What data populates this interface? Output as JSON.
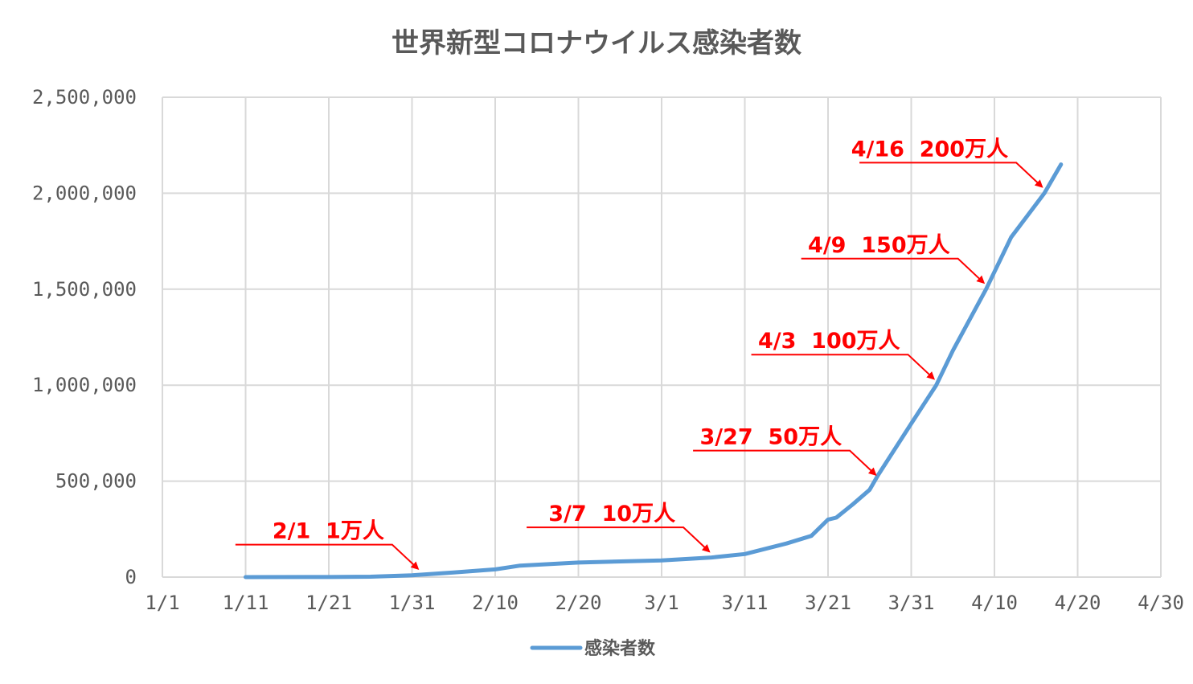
{
  "chart_data": {
    "type": "line",
    "title": "世界新型コロナウイルス感染者数",
    "xlabel": "",
    "ylabel": "",
    "x_ticks": [
      "1/1",
      "1/11",
      "1/21",
      "1/31",
      "2/10",
      "2/20",
      "3/1",
      "3/11",
      "3/21",
      "3/31",
      "4/10",
      "4/20",
      "4/30"
    ],
    "y_ticks": [
      "0",
      "500,000",
      "1,000,000",
      "1,500,000",
      "2,000,000",
      "2,500,000"
    ],
    "ylim": [
      0,
      2500000
    ],
    "xlim": [
      "1/1",
      "4/30"
    ],
    "grid": true,
    "legend_position": "bottom",
    "series": [
      {
        "name": "感染者数",
        "color": "#5b9bd5",
        "points": [
          [
            "1/11",
            0
          ],
          [
            "1/21",
            300
          ],
          [
            "1/26",
            2000
          ],
          [
            "1/31",
            9800
          ],
          [
            "2/5",
            24000
          ],
          [
            "2/10",
            40000
          ],
          [
            "2/13",
            60000
          ],
          [
            "2/20",
            76000
          ],
          [
            "3/1",
            87000
          ],
          [
            "3/7",
            102000
          ],
          [
            "3/11",
            120000
          ],
          [
            "3/16",
            175000
          ],
          [
            "3/19",
            215000
          ],
          [
            "3/21",
            300000
          ],
          [
            "3/22",
            310000
          ],
          [
            "3/24",
            380000
          ],
          [
            "3/26",
            455000
          ],
          [
            "3/27",
            530000
          ],
          [
            "3/31",
            800000
          ],
          [
            "4/3",
            1000000
          ],
          [
            "4/5",
            1180000
          ],
          [
            "4/9",
            1500000
          ],
          [
            "4/12",
            1770000
          ],
          [
            "4/16",
            2000000
          ],
          [
            "4/18",
            2150000
          ]
        ]
      }
    ],
    "annotations": [
      {
        "label": "2/1  1万人",
        "x": "2/1",
        "y": 10000
      },
      {
        "label": "3/7  10万人",
        "x": "3/7",
        "y": 100000
      },
      {
        "label": "3/27  50万人",
        "x": "3/27",
        "y": 500000
      },
      {
        "label": "4/3  100万人",
        "x": "4/3",
        "y": 1000000
      },
      {
        "label": "4/9  150万人",
        "x": "4/9",
        "y": 1500000
      },
      {
        "label": "4/16  200万人",
        "x": "4/16",
        "y": 2000000
      }
    ],
    "annotation_color": "#ff0000"
  }
}
